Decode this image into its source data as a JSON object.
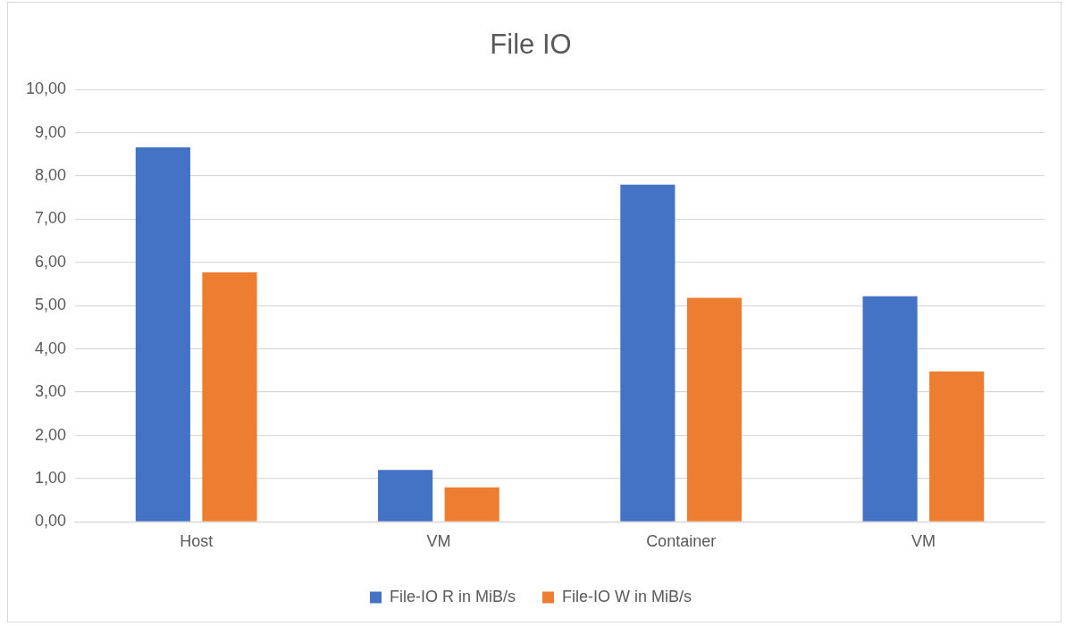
{
  "chart_data": {
    "type": "bar",
    "title": "File IO",
    "categories": [
      "Host",
      "VM",
      "Container",
      "VM"
    ],
    "series": [
      {
        "name": "File-IO R in MiB/s",
        "color": "#4472c4",
        "values": [
          8.66,
          1.2,
          7.8,
          5.22
        ]
      },
      {
        "name": "File-IO W in MiB/s",
        "color": "#ed7d31",
        "values": [
          5.77,
          0.8,
          5.18,
          3.48
        ]
      }
    ],
    "ylim": [
      0,
      10
    ],
    "yticks": [
      {
        "value": 0,
        "label": "0,00"
      },
      {
        "value": 1,
        "label": "1,00"
      },
      {
        "value": 2,
        "label": "2,00"
      },
      {
        "value": 3,
        "label": "3,00"
      },
      {
        "value": 4,
        "label": "4,00"
      },
      {
        "value": 5,
        "label": "5,00"
      },
      {
        "value": 6,
        "label": "6,00"
      },
      {
        "value": 7,
        "label": "7,00"
      },
      {
        "value": 8,
        "label": "8,00"
      },
      {
        "value": 9,
        "label": "9,00"
      },
      {
        "value": 10,
        "label": "10,00"
      }
    ],
    "grid": "y",
    "legend": "bottom"
  }
}
